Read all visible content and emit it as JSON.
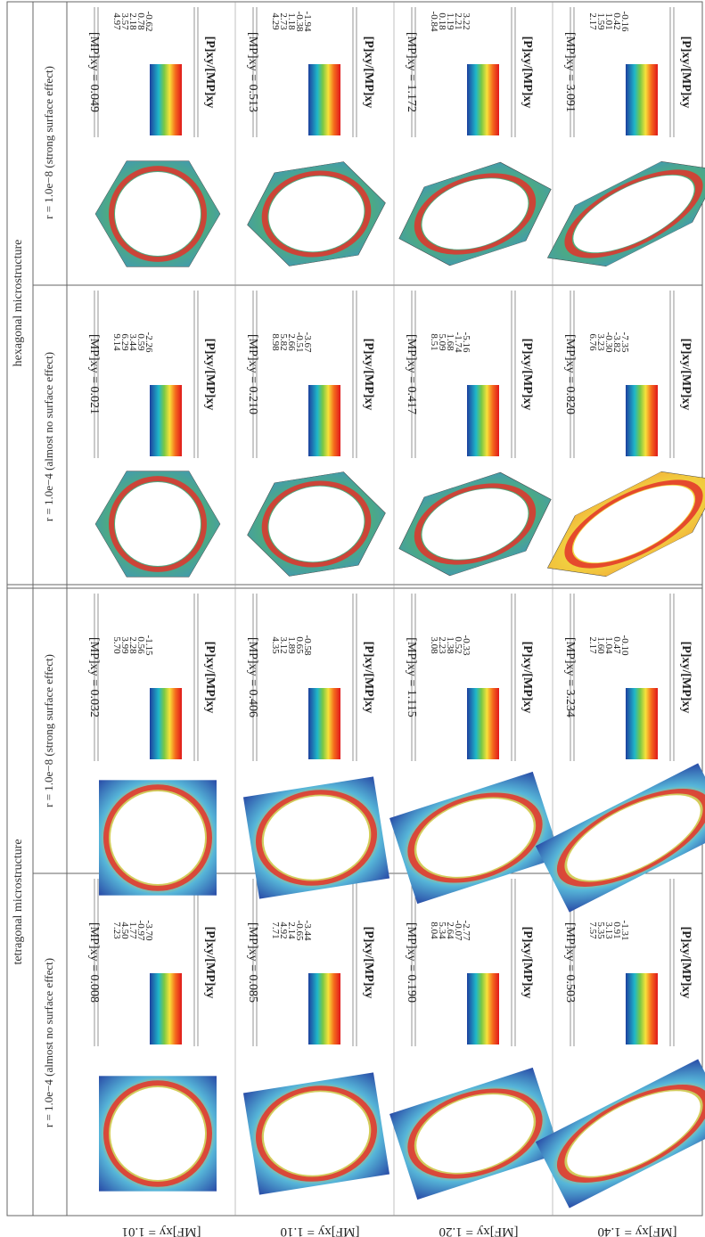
{
  "header": {
    "groups": [
      "tetragonal microstructure",
      "hexagonal microstructure"
    ],
    "columns": [
      "r = 1.0e−4 (almost no surface effect)",
      "r = 1.0e−8 (strong surface effect)",
      "r = 1.0e−4 (almost no surface effect)",
      "r = 1.0e−8 (strong surface effect)"
    ]
  },
  "legend_title": "[P]xy/[MP]xy",
  "rows": [
    {
      "label": "[MF]xy = 1.01",
      "cells": [
        {
          "scale": [
            "7.23",
            "4.50",
            "1.77",
            "-0.97",
            "-3.70"
          ],
          "footer": "[MP]xy = 0.008"
        },
        {
          "scale": [
            "5.70",
            "3.99",
            "2.28",
            "0.56",
            "-1.15"
          ],
          "footer": "[MP]xy = 0.032"
        },
        {
          "scale": [
            "9.14",
            "6.29",
            "3.44",
            "0.59",
            "-2.26"
          ],
          "footer": "[MP]xy = 0.021"
        },
        {
          "scale": [
            "4.97",
            "3.57",
            "2.18",
            "0.78",
            "-0.62"
          ],
          "footer": "[MP]xy = 0.049"
        }
      ]
    },
    {
      "label": "[MF]xy = 1.10",
      "cells": [
        {
          "scale": [
            "7.71",
            "4.92",
            "2.14",
            "-0.65",
            "-3.44"
          ],
          "footer": "[MP]xy = 0.085"
        },
        {
          "scale": [
            "4.35",
            "3.12",
            "1.89",
            "0.65",
            "-0.58"
          ],
          "footer": "[MP]xy = 0.406"
        },
        {
          "scale": [
            "8.98",
            "5.82",
            "2.66",
            "-0.51",
            "-3.67"
          ],
          "footer": "[MP]xy = 0.210"
        },
        {
          "scale": [
            "4.29",
            "2.73",
            "1.18",
            "-0.38",
            "-1.94"
          ],
          "footer": "[MP]xy = 0.513"
        }
      ]
    },
    {
      "label": "[MF]xy = 1.20",
      "cells": [
        {
          "scale": [
            "8.04",
            "5.34",
            "2.64",
            "-0.07",
            "-2.77"
          ],
          "footer": "[MP]xy = 0.190"
        },
        {
          "scale": [
            "3.08",
            "2.23",
            "1.38",
            "0.52",
            "-0.33"
          ],
          "footer": "[MP]xy = 1.115"
        },
        {
          "scale": [
            "8.51",
            "5.09",
            "1.68",
            "-1.74",
            "-5.16"
          ],
          "footer": "[MP]xy = 0.417"
        },
        {
          "scale": [
            "-0.84",
            "0.18",
            "1.19",
            "2.21",
            "3.22"
          ],
          "footer": "[MP]xy = 1.172"
        }
      ]
    },
    {
      "label": "[MF]xy = 1.40",
      "cells": [
        {
          "scale": [
            "7.57",
            "5.35",
            "3.13",
            "0.91",
            "-1.31"
          ],
          "footer": "[MP]xy = 0.503"
        },
        {
          "scale": [
            "2.17",
            "1.60",
            "1.04",
            "0.47",
            "-0.10"
          ],
          "footer": "[MP]xy = 3.234"
        },
        {
          "scale": [
            "6.76",
            "3.23",
            "-0.30",
            "-3.82",
            "-7.35"
          ],
          "footer": "[MP]xy = 0.820"
        },
        {
          "scale": [
            "2.17",
            "1.59",
            "1.01",
            "0.42",
            "-0.16"
          ],
          "footer": "[MP]xy = 3.091"
        }
      ]
    }
  ],
  "colors": {
    "line": "#555555",
    "ring_blue": "#2c5fb8",
    "ring_green": "#6fbf4a",
    "ring_red": "#e3332a",
    "ring_yellow": "#f2d63c"
  }
}
